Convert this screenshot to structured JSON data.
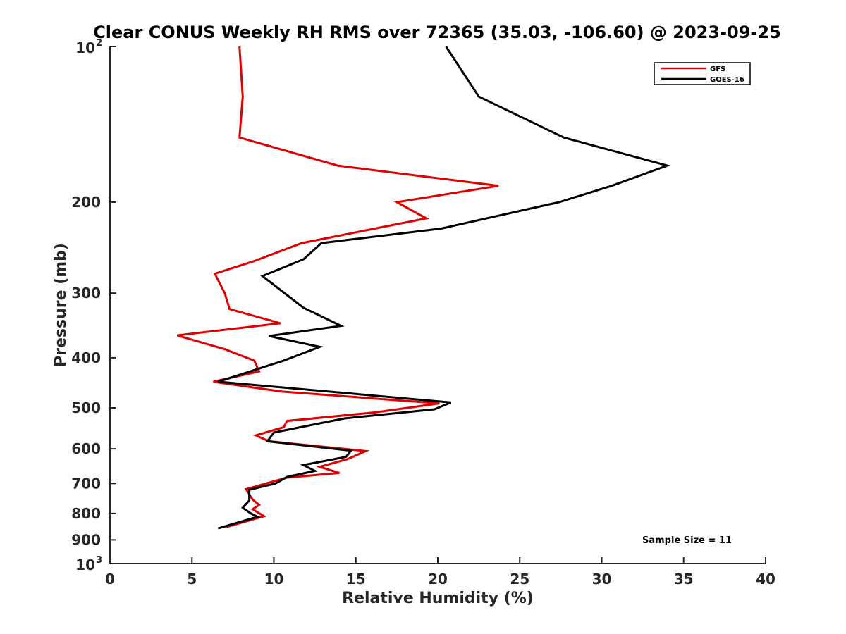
{
  "chart_data": {
    "type": "line",
    "title": "Clear CONUS Weekly RH RMS over 72365 (35.03, -106.60) @ 2023-09-25",
    "xlabel": "Relative Humidity (%)",
    "ylabel": "Pressure (mb)",
    "xlim": [
      0,
      40
    ],
    "ylim": [
      100,
      1000
    ],
    "y_scale": "log",
    "y_reversed": true,
    "x_ticks": [
      "0",
      "5",
      "10",
      "15",
      "20",
      "25",
      "30",
      "35",
      "40"
    ],
    "y_ticks": [
      {
        "value": 100,
        "base": "10",
        "exp": "2"
      },
      {
        "value": 200,
        "base": "200",
        "exp": ""
      },
      {
        "value": 300,
        "base": "300",
        "exp": ""
      },
      {
        "value": 400,
        "base": "400",
        "exp": ""
      },
      {
        "value": 500,
        "base": "500",
        "exp": ""
      },
      {
        "value": 600,
        "base": "600",
        "exp": ""
      },
      {
        "value": 700,
        "base": "700",
        "exp": ""
      },
      {
        "value": 800,
        "base": "800",
        "exp": ""
      },
      {
        "value": 900,
        "base": "900",
        "exp": ""
      },
      {
        "value": 1000,
        "base": "10",
        "exp": "3"
      }
    ],
    "legend": {
      "location": "top-right"
    },
    "annotation": "Sample Size = 11",
    "series": [
      {
        "name": "GFS",
        "color": "#e00000",
        "points": [
          [
            7.9,
            100
          ],
          [
            8.1,
            125
          ],
          [
            7.9,
            150
          ],
          [
            13.9,
            170
          ],
          [
            23.7,
            186
          ],
          [
            17.5,
            200
          ],
          [
            19.3,
            215
          ],
          [
            11.7,
            240
          ],
          [
            8.8,
            260
          ],
          [
            6.4,
            275
          ],
          [
            7.0,
            300
          ],
          [
            7.3,
            322
          ],
          [
            10.4,
            343
          ],
          [
            4.1,
            362
          ],
          [
            7.0,
            385
          ],
          [
            8.8,
            405
          ],
          [
            9.1,
            425
          ],
          [
            6.3,
            445
          ],
          [
            10.5,
            465
          ],
          [
            20.1,
            490
          ],
          [
            16.2,
            510
          ],
          [
            10.8,
            530
          ],
          [
            10.6,
            545
          ],
          [
            8.9,
            565
          ],
          [
            9.7,
            580
          ],
          [
            15.6,
            606
          ],
          [
            14.5,
            628
          ],
          [
            12.8,
            650
          ],
          [
            14.0,
            668
          ],
          [
            10.8,
            682
          ],
          [
            8.3,
            718
          ],
          [
            8.7,
            752
          ],
          [
            9.1,
            770
          ],
          [
            8.7,
            785
          ],
          [
            9.4,
            810
          ],
          [
            7.1,
            850
          ]
        ]
      },
      {
        "name": "GOES-16",
        "color": "#000000",
        "points": [
          [
            20.5,
            100
          ],
          [
            22.5,
            125
          ],
          [
            27.7,
            150
          ],
          [
            34.0,
            170
          ],
          [
            30.6,
            186
          ],
          [
            27.4,
            200
          ],
          [
            20.2,
            225
          ],
          [
            12.9,
            240
          ],
          [
            11.8,
            258
          ],
          [
            9.3,
            278
          ],
          [
            11.8,
            320
          ],
          [
            14.1,
            347
          ],
          [
            9.7,
            363
          ],
          [
            12.8,
            381
          ],
          [
            10.6,
            405
          ],
          [
            6.6,
            445
          ],
          [
            20.8,
            488
          ],
          [
            19.8,
            503
          ],
          [
            14.3,
            524
          ],
          [
            10.0,
            558
          ],
          [
            9.6,
            580
          ],
          [
            14.7,
            605
          ],
          [
            14.4,
            622
          ],
          [
            11.8,
            645
          ],
          [
            12.5,
            662
          ],
          [
            10.8,
            680
          ],
          [
            10.1,
            700
          ],
          [
            8.5,
            720
          ],
          [
            8.5,
            755
          ],
          [
            8.1,
            780
          ],
          [
            8.6,
            800
          ],
          [
            9.0,
            812
          ],
          [
            6.6,
            855
          ]
        ]
      }
    ]
  }
}
